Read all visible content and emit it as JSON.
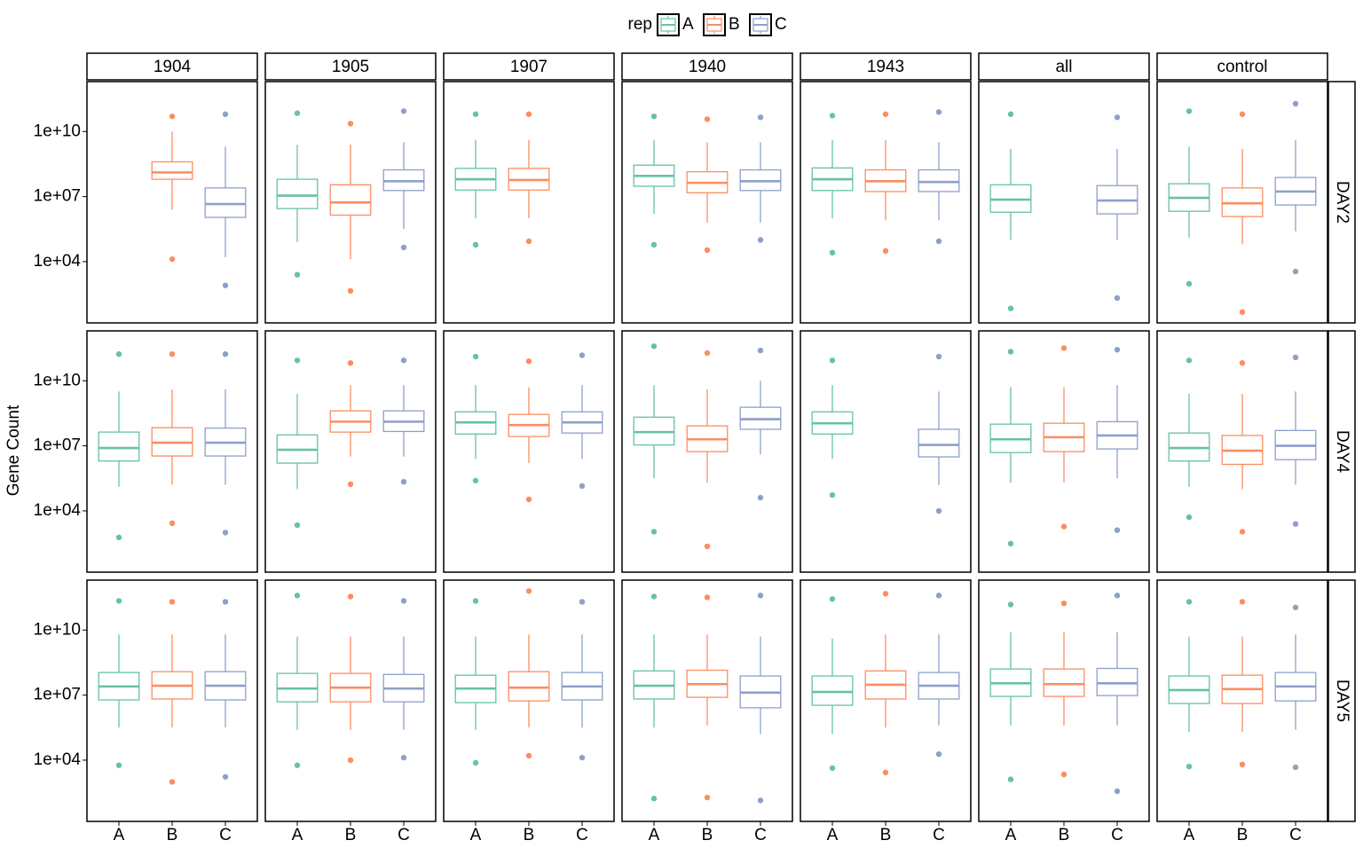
{
  "chart_data": {
    "type": "boxplot",
    "y_label": "Gene Count",
    "legend_title": "rep",
    "log_scale": true,
    "ylim": [
      15,
      2000000000000.0
    ],
    "yticks": [
      {
        "value": 10000.0,
        "label": "1e+04"
      },
      {
        "value": 10000000.0,
        "label": "1e+07"
      },
      {
        "value": 10000000000.0,
        "label": "1e+10"
      }
    ],
    "series": [
      {
        "name": "A",
        "color": "#66c2a5"
      },
      {
        "name": "B",
        "color": "#fc8d62"
      },
      {
        "name": "C",
        "color": "#8da0cb"
      }
    ],
    "columns": [
      "1904",
      "1905",
      "1907",
      "1940",
      "1943",
      "all",
      "control"
    ],
    "rows": [
      "DAY2",
      "DAY4",
      "DAY5"
    ],
    "panels": [
      [
        [
          null,
          {
            "whislo": 2500000.0,
            "q1": 63000000.0,
            "med": 130000000.0,
            "q3": 400000000.0,
            "whishi": 10000000000.0,
            "fliers": [
              13000.0,
              50000000000.0
            ]
          },
          {
            "whislo": 16000.0,
            "q1": 1100000.0,
            "med": 4500000.0,
            "q3": 25000000.0,
            "whishi": 2000000000.0,
            "fliers": [
              800.0,
              63000000000.0
            ]
          }
        ],
        [
          {
            "whislo": 80000.0,
            "q1": 2800000.0,
            "med": 11000000.0,
            "q3": 63000000.0,
            "whishi": 2500000000.0,
            "fliers": [
              2500.0,
              70000000000.0
            ]
          },
          {
            "whislo": 13000.0,
            "q1": 1400000.0,
            "med": 5400000.0,
            "q3": 35000000.0,
            "whishi": 2500000000.0,
            "fliers": [
              450.0,
              23000000000.0
            ]
          },
          {
            "whislo": 320000.0,
            "q1": 19000000.0,
            "med": 51000000.0,
            "q3": 170000000.0,
            "whishi": 3200000000.0,
            "fliers": [
              45000.0,
              87000000000.0
            ]
          }
        ],
        [
          {
            "whislo": 1000000.0,
            "q1": 20000000.0,
            "med": 63000000.0,
            "q3": 200000000.0,
            "whishi": 4000000000.0,
            "fliers": [
              60000.0,
              63000000000.0
            ]
          },
          {
            "whislo": 1000000.0,
            "q1": 20000000.0,
            "med": 58000000.0,
            "q3": 200000000.0,
            "whishi": 4000000000.0,
            "fliers": [
              87000.0,
              63000000000.0
            ]
          },
          null
        ],
        [
          {
            "whislo": 1600000.0,
            "q1": 30000000.0,
            "med": 90000000.0,
            "q3": 280000000.0,
            "whishi": 4000000000.0,
            "fliers": [
              60000.0,
              50000000000.0
            ]
          },
          {
            "whislo": 630000.0,
            "q1": 15000000.0,
            "med": 43000000.0,
            "q3": 140000000.0,
            "whishi": 3200000000.0,
            "fliers": [
              34000.0,
              37000000000.0
            ]
          },
          {
            "whislo": 630000.0,
            "q1": 19000000.0,
            "med": 51000000.0,
            "q3": 170000000.0,
            "whishi": 3200000000.0,
            "fliers": [
              100000.0,
              45000000000.0
            ]
          }
        ],
        [
          {
            "whislo": 1000000.0,
            "q1": 19000000.0,
            "med": 63000000.0,
            "q3": 210000000.0,
            "whishi": 4000000000.0,
            "fliers": [
              26000.0,
              54000000000.0
            ]
          },
          {
            "whislo": 800000.0,
            "q1": 17000000.0,
            "med": 51000000.0,
            "q3": 170000000.0,
            "whishi": 4000000000.0,
            "fliers": [
              31000.0,
              63000000000.0
            ]
          },
          {
            "whislo": 800000.0,
            "q1": 17000000.0,
            "med": 47000000.0,
            "q3": 170000000.0,
            "whishi": 3200000000.0,
            "fliers": [
              87000.0,
              79000000000.0
            ]
          }
        ],
        [
          {
            "whislo": 100000.0,
            "q1": 1900000.0,
            "med": 7200000.0,
            "q3": 35000000.0,
            "whishi": 1600000000.0,
            "fliers": [
              70,
              63000000000.0
            ]
          },
          null,
          {
            "whislo": 100000.0,
            "q1": 1600000.0,
            "med": 6600000.0,
            "q3": 32000000.0,
            "whishi": 1600000000.0,
            "fliers": [
              210.0,
              45000000000.0
            ]
          }
        ],
        [
          {
            "whislo": 130000.0,
            "q1": 2100000.0,
            "med": 8700000.0,
            "q3": 39000000.0,
            "whishi": 2000000000.0,
            "fliers": [
              950.0,
              87000000000.0
            ]
          },
          {
            "whislo": 63000.0,
            "q1": 1200000.0,
            "med": 4900000.0,
            "q3": 25000000.0,
            "whishi": 1600000000.0,
            "fliers": [
              47,
              63000000000.0
            ]
          },
          {
            "whislo": 250000.0,
            "q1": 4100000.0,
            "med": 17000000.0,
            "q3": 76000000.0,
            "whishi": 4000000000.0,
            "fliers": [
              3500.0,
              190000000000.0
            ]
          }
        ]
      ],
      [
        [
          {
            "whislo": 130000.0,
            "q1": 2000000.0,
            "med": 7900000.0,
            "q3": 43000000.0,
            "whishi": 3200000000.0,
            "fliers": [
              600.0,
              170000000000.0
            ]
          },
          {
            "whislo": 160000.0,
            "q1": 3400000.0,
            "med": 14000000.0,
            "q3": 69000000.0,
            "whishi": 4000000000.0,
            "fliers": [
              2700.0,
              170000000000.0
            ]
          },
          {
            "whislo": 160000.0,
            "q1": 3400000.0,
            "med": 14000000.0,
            "q3": 66000000.0,
            "whishi": 4000000000.0,
            "fliers": [
              1000.0,
              170000000000.0
            ]
          }
        ],
        [
          {
            "whislo": 100000.0,
            "q1": 1600000.0,
            "med": 6600000.0,
            "q3": 32000000.0,
            "whishi": 2500000000.0,
            "fliers": [
              2200.0,
              87000000000.0
            ]
          },
          {
            "whislo": 3200000.0,
            "q1": 43000000.0,
            "med": 130000000.0,
            "q3": 410000000.0,
            "whishi": 6300000000.0,
            "fliers": [
              170000.0,
              66000000000.0
            ]
          },
          {
            "whislo": 3200000.0,
            "q1": 46000000.0,
            "med": 130000000.0,
            "q3": 410000000.0,
            "whishi": 6300000000.0,
            "fliers": [
              220000.0,
              87000000000.0
            ]
          }
        ],
        [
          {
            "whislo": 2500000.0,
            "q1": 35000000.0,
            "med": 120000000.0,
            "q3": 370000000.0,
            "whishi": 6300000000.0,
            "fliers": [
              250000.0,
              130000000000.0
            ]
          },
          {
            "whislo": 1600000.0,
            "q1": 27000000.0,
            "med": 91000000.0,
            "q3": 280000000.0,
            "whishi": 5000000000.0,
            "fliers": [
              34000.0,
              80000000000.0
            ]
          },
          {
            "whislo": 2500000.0,
            "q1": 39000000.0,
            "med": 120000000.0,
            "q3": 370000000.0,
            "whishi": 6300000000.0,
            "fliers": [
              140000.0,
              150000000000.0
            ]
          }
        ],
        [
          {
            "whislo": 320000.0,
            "q1": 11000000.0,
            "med": 43000000.0,
            "q3": 210000000.0,
            "whishi": 6300000000.0,
            "fliers": [
              1100.0,
              390000000000.0
            ]
          },
          {
            "whislo": 200000.0,
            "q1": 5400000.0,
            "med": 20000000.0,
            "q3": 83000000.0,
            "whishi": 4000000000.0,
            "fliers": [
              230.0,
              190000000000.0
            ]
          },
          {
            "whislo": 4000000.0,
            "q1": 58000000.0,
            "med": 170000000.0,
            "q3": 600000000.0,
            "whishi": 10000000000.0,
            "fliers": [
              41000.0,
              250000000000.0
            ]
          }
        ],
        [
          {
            "whislo": 2500000.0,
            "q1": 35000000.0,
            "med": 110000000.0,
            "q3": 370000000.0,
            "whishi": 6300000000.0,
            "fliers": [
              54000.0,
              87000000000.0
            ]
          },
          null,
          {
            "whislo": 160000.0,
            "q1": 3100000.0,
            "med": 11000000.0,
            "q3": 58000000.0,
            "whishi": 3200000000.0,
            "fliers": [
              10000.0,
              130000000000.0
            ]
          }
        ],
        [
          {
            "whislo": 200000.0,
            "q1": 4900000.0,
            "med": 20000000.0,
            "q3": 100000000.0,
            "whishi": 5000000000.0,
            "fliers": [
              310.0,
              220000000000.0
            ]
          },
          {
            "whislo": 200000.0,
            "q1": 5400000.0,
            "med": 25000000.0,
            "q3": 110000000.0,
            "whishi": 5000000000.0,
            "fliers": [
              1900.0,
              320000000000.0
            ]
          },
          {
            "whislo": 320000.0,
            "q1": 7200000.0,
            "med": 30000000.0,
            "q3": 130000000.0,
            "whishi": 6300000000.0,
            "fliers": [
              1300.0,
              270000000000.0
            ]
          }
        ],
        [
          {
            "whislo": 130000.0,
            "q1": 2000000.0,
            "med": 7900000.0,
            "q3": 39000000.0,
            "whishi": 2500000000.0,
            "fliers": [
              5100.0,
              87000000000.0
            ]
          },
          {
            "whislo": 100000.0,
            "q1": 1400000.0,
            "med": 6000000.0,
            "q3": 30000000.0,
            "whishi": 2500000000.0,
            "fliers": [
              1100.0,
              66000000000.0
            ]
          },
          {
            "whislo": 160000.0,
            "q1": 2300000.0,
            "med": 10000000.0,
            "q3": 51000000.0,
            "whishi": 3200000000.0,
            "fliers": [
              2500.0,
              120000000000.0
            ]
          }
        ]
      ],
      [
        [
          {
            "whislo": 320000.0,
            "q1": 6000000.0,
            "med": 25000000.0,
            "q3": 110000000.0,
            "whishi": 6300000000.0,
            "fliers": [
              5800.0,
              220000000000.0
            ]
          },
          {
            "whislo": 320000.0,
            "q1": 6600000.0,
            "med": 27000000.0,
            "q3": 120000000.0,
            "whishi": 6300000000.0,
            "fliers": [
              1000.0,
              200000000000.0
            ]
          },
          {
            "whislo": 320000.0,
            "q1": 6000000.0,
            "med": 27000000.0,
            "q3": 120000000.0,
            "whishi": 6300000000.0,
            "fliers": [
              1700.0,
              200000000000.0
            ]
          }
        ],
        [
          {
            "whislo": 250000.0,
            "q1": 4900000.0,
            "med": 20000000.0,
            "q3": 100000000.0,
            "whishi": 5000000000.0,
            "fliers": [
              5800.0,
              390000000000.0
            ]
          },
          {
            "whislo": 250000.0,
            "q1": 4900000.0,
            "med": 22000000.0,
            "q3": 100000000.0,
            "whishi": 5000000000.0,
            "fliers": [
              10000.0,
              350000000000.0
            ]
          },
          {
            "whislo": 250000.0,
            "q1": 4900000.0,
            "med": 20000000.0,
            "q3": 90000000.0,
            "whishi": 5000000000.0,
            "fliers": [
              13000.0,
              220000000000.0
            ]
          }
        ],
        [
          {
            "whislo": 250000.0,
            "q1": 4500000.0,
            "med": 20000000.0,
            "q3": 83000000.0,
            "whishi": 5000000000.0,
            "fliers": [
              7600.0,
              220000000000.0
            ]
          },
          {
            "whislo": 320000.0,
            "q1": 5400000.0,
            "med": 22000000.0,
            "q3": 120000000.0,
            "whishi": 6300000000.0,
            "fliers": [
              16000.0,
              630000000000.0
            ]
          },
          {
            "whislo": 320000.0,
            "q1": 6000000.0,
            "med": 25000000.0,
            "q3": 110000000.0,
            "whishi": 6300000000.0,
            "fliers": [
              13000.0,
              200000000000.0
            ]
          }
        ],
        [
          {
            "whislo": 320000.0,
            "q1": 6600000.0,
            "med": 27000000.0,
            "q3": 130000000.0,
            "whishi": 6300000000.0,
            "fliers": [
              170.0,
              350000000000.0
            ]
          },
          {
            "whislo": 400000.0,
            "q1": 7900000.0,
            "med": 32000000.0,
            "q3": 140000000.0,
            "whishi": 6300000000.0,
            "fliers": [
              190.0,
              320000000000.0
            ]
          },
          {
            "whislo": 160000.0,
            "q1": 2600000.0,
            "med": 13000000.0,
            "q3": 76000000.0,
            "whishi": 5000000000.0,
            "fliers": [
              140.0,
              390000000000.0
            ]
          }
        ],
        [
          {
            "whislo": 160000.0,
            "q1": 3400000.0,
            "med": 14000000.0,
            "q3": 76000000.0,
            "whishi": 4000000000.0,
            "fliers": [
              4300.0,
              270000000000.0
            ]
          },
          {
            "whislo": 320000.0,
            "q1": 6600000.0,
            "med": 30000000.0,
            "q3": 130000000.0,
            "whishi": 6300000000.0,
            "fliers": [
              2700.0,
              470000000000.0
            ]
          },
          {
            "whislo": 400000.0,
            "q1": 6600000.0,
            "med": 27000000.0,
            "q3": 110000000.0,
            "whishi": 6300000000.0,
            "fliers": [
              19000.0,
              390000000000.0
            ]
          }
        ],
        [
          {
            "whislo": 400000.0,
            "q1": 8700000.0,
            "med": 35000000.0,
            "q3": 160000000.0,
            "whishi": 7900000000.0,
            "fliers": [
              1300.0,
              150000000000.0
            ]
          },
          {
            "whislo": 400000.0,
            "q1": 8700000.0,
            "med": 32000000.0,
            "q3": 160000000.0,
            "whishi": 7900000000.0,
            "fliers": [
              2200.0,
              170000000000.0
            ]
          },
          {
            "whislo": 400000.0,
            "q1": 9500000.0,
            "med": 35000000.0,
            "q3": 170000000.0,
            "whishi": 7900000000.0,
            "fliers": [
              370.0,
              390000000000.0
            ]
          }
        ],
        [
          {
            "whislo": 200000.0,
            "q1": 4100000.0,
            "med": 17000000.0,
            "q3": 76000000.0,
            "whishi": 5000000000.0,
            "fliers": [
              5100.0,
              200000000000.0
            ]
          },
          {
            "whislo": 200000.0,
            "q1": 4100000.0,
            "med": 19000000.0,
            "q3": 83000000.0,
            "whishi": 5000000000.0,
            "fliers": [
              6300.0,
              200000000000.0
            ]
          },
          {
            "whislo": 250000.0,
            "q1": 5400000.0,
            "med": 25000000.0,
            "q3": 110000000.0,
            "whishi": 6300000000.0,
            "fliers": [
              4700.0,
              110000000000.0
            ]
          }
        ]
      ]
    ]
  }
}
